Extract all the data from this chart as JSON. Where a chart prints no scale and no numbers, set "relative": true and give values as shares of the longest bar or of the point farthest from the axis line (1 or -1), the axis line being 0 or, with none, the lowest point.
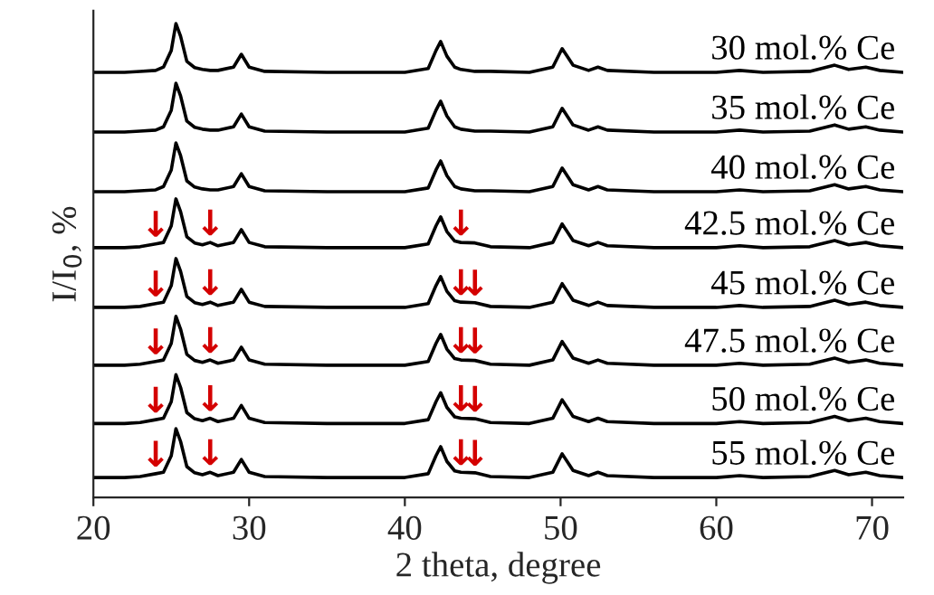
{
  "chart_data": {
    "type": "line",
    "relative": true,
    "xlabel": "2 theta, degree",
    "ylabel": "I/I$_{0}$, %",
    "xlim": [
      20,
      72
    ],
    "xticks": [
      20,
      30,
      40,
      50,
      60,
      70
    ],
    "grid": false,
    "legend": false,
    "marker": "none",
    "line_style": "solid",
    "x": [
      20,
      22,
      23,
      24,
      24.5,
      25,
      25.3,
      25.6,
      26,
      26.5,
      27,
      27.5,
      28,
      29,
      29.5,
      30,
      31,
      35,
      40,
      41.5,
      42,
      42.3,
      42.7,
      43.2,
      43.6,
      44.5,
      45.5,
      48,
      49.5,
      50.1,
      50.8,
      51.8,
      52.4,
      53,
      56,
      60,
      61.5,
      63,
      66,
      67.6,
      68.5,
      69.6,
      70.5,
      72
    ],
    "series": [
      {
        "name": "30 mol.% Ce",
        "color": "#000000",
        "values": [
          0.897,
          0.897,
          0.899,
          0.901,
          0.908,
          0.943,
          1.0,
          0.973,
          0.92,
          0.907,
          0.903,
          0.901,
          0.901,
          0.908,
          0.935,
          0.908,
          0.899,
          0.897,
          0.897,
          0.905,
          0.943,
          0.962,
          0.931,
          0.908,
          0.903,
          0.899,
          0.899,
          0.897,
          0.908,
          0.947,
          0.912,
          0.901,
          0.908,
          0.901,
          0.897,
          0.897,
          0.901,
          0.897,
          0.899,
          0.912,
          0.903,
          0.908,
          0.901,
          0.897
        ]
      },
      {
        "name": "35 mol.% Ce",
        "color": "#000000",
        "values": [
          0.771,
          0.771,
          0.773,
          0.775,
          0.782,
          0.817,
          0.874,
          0.847,
          0.794,
          0.781,
          0.777,
          0.775,
          0.775,
          0.782,
          0.809,
          0.782,
          0.773,
          0.771,
          0.771,
          0.779,
          0.817,
          0.836,
          0.805,
          0.782,
          0.777,
          0.773,
          0.773,
          0.771,
          0.782,
          0.821,
          0.786,
          0.775,
          0.782,
          0.775,
          0.771,
          0.771,
          0.775,
          0.771,
          0.773,
          0.786,
          0.777,
          0.782,
          0.775,
          0.771
        ]
      },
      {
        "name": "40 mol.% Ce",
        "color": "#000000",
        "values": [
          0.645,
          0.645,
          0.647,
          0.649,
          0.656,
          0.691,
          0.748,
          0.721,
          0.668,
          0.655,
          0.651,
          0.649,
          0.649,
          0.656,
          0.683,
          0.656,
          0.647,
          0.645,
          0.645,
          0.653,
          0.691,
          0.71,
          0.679,
          0.656,
          0.651,
          0.647,
          0.647,
          0.645,
          0.656,
          0.695,
          0.66,
          0.649,
          0.656,
          0.649,
          0.645,
          0.645,
          0.649,
          0.645,
          0.647,
          0.66,
          0.651,
          0.656,
          0.649,
          0.645
        ]
      },
      {
        "name": "42.5 mol.% Ce",
        "color": "#000000",
        "values": [
          0.527,
          0.527,
          0.529,
          0.535,
          0.538,
          0.573,
          0.63,
          0.603,
          0.55,
          0.537,
          0.533,
          0.538,
          0.531,
          0.538,
          0.565,
          0.538,
          0.529,
          0.527,
          0.527,
          0.535,
          0.573,
          0.592,
          0.561,
          0.541,
          0.538,
          0.537,
          0.529,
          0.527,
          0.538,
          0.577,
          0.542,
          0.531,
          0.538,
          0.531,
          0.527,
          0.527,
          0.531,
          0.527,
          0.529,
          0.542,
          0.533,
          0.538,
          0.531,
          0.527
        ]
      },
      {
        "name": "45 mol.% Ce",
        "color": "#000000",
        "values": [
          0.401,
          0.401,
          0.403,
          0.409,
          0.412,
          0.447,
          0.504,
          0.477,
          0.424,
          0.411,
          0.407,
          0.412,
          0.405,
          0.412,
          0.439,
          0.412,
          0.403,
          0.401,
          0.401,
          0.409,
          0.447,
          0.466,
          0.435,
          0.415,
          0.412,
          0.411,
          0.403,
          0.401,
          0.412,
          0.451,
          0.416,
          0.405,
          0.412,
          0.405,
          0.401,
          0.401,
          0.405,
          0.401,
          0.403,
          0.416,
          0.407,
          0.412,
          0.405,
          0.401
        ]
      },
      {
        "name": "47.5 mol.% Ce",
        "color": "#000000",
        "values": [
          0.279,
          0.279,
          0.281,
          0.287,
          0.29,
          0.325,
          0.382,
          0.355,
          0.302,
          0.289,
          0.285,
          0.29,
          0.283,
          0.29,
          0.317,
          0.29,
          0.281,
          0.279,
          0.279,
          0.287,
          0.325,
          0.344,
          0.313,
          0.293,
          0.29,
          0.289,
          0.281,
          0.279,
          0.29,
          0.329,
          0.294,
          0.283,
          0.29,
          0.283,
          0.279,
          0.279,
          0.283,
          0.279,
          0.281,
          0.294,
          0.285,
          0.29,
          0.283,
          0.279
        ]
      },
      {
        "name": "50 mol.% Ce",
        "color": "#000000",
        "values": [
          0.156,
          0.156,
          0.158,
          0.164,
          0.167,
          0.202,
          0.259,
          0.232,
          0.179,
          0.166,
          0.162,
          0.167,
          0.16,
          0.167,
          0.194,
          0.167,
          0.158,
          0.156,
          0.156,
          0.164,
          0.202,
          0.221,
          0.19,
          0.17,
          0.167,
          0.166,
          0.158,
          0.156,
          0.167,
          0.206,
          0.171,
          0.16,
          0.167,
          0.16,
          0.156,
          0.156,
          0.16,
          0.156,
          0.158,
          0.171,
          0.162,
          0.167,
          0.16,
          0.156
        ]
      },
      {
        "name": "55 mol.% Ce",
        "color": "#000000",
        "values": [
          0.042,
          0.042,
          0.044,
          0.05,
          0.053,
          0.088,
          0.145,
          0.118,
          0.065,
          0.052,
          0.048,
          0.053,
          0.046,
          0.053,
          0.08,
          0.053,
          0.044,
          0.042,
          0.042,
          0.05,
          0.088,
          0.107,
          0.076,
          0.056,
          0.053,
          0.052,
          0.044,
          0.042,
          0.053,
          0.092,
          0.057,
          0.046,
          0.053,
          0.046,
          0.042,
          0.042,
          0.046,
          0.042,
          0.044,
          0.057,
          0.048,
          0.053,
          0.046,
          0.042
        ]
      }
    ],
    "annotations": [
      {
        "text": "↓",
        "x": 24,
        "y": 0.535
      },
      {
        "text": "↓",
        "x": 27.5,
        "y": 0.538
      },
      {
        "text": "↓",
        "x": 43.6,
        "y": 0.538
      },
      {
        "text": "↓",
        "x": 24,
        "y": 0.409
      },
      {
        "text": "↓",
        "x": 27.5,
        "y": 0.412
      },
      {
        "text": "↓",
        "x": 43.6,
        "y": 0.412
      },
      {
        "text": "↓",
        "x": 44.5,
        "y": 0.411
      },
      {
        "text": "↓",
        "x": 24,
        "y": 0.287
      },
      {
        "text": "↓",
        "x": 27.5,
        "y": 0.29
      },
      {
        "text": "↓",
        "x": 43.6,
        "y": 0.29
      },
      {
        "text": "↓",
        "x": 44.5,
        "y": 0.289
      },
      {
        "text": "↓",
        "x": 24,
        "y": 0.164
      },
      {
        "text": "↓",
        "x": 27.5,
        "y": 0.167
      },
      {
        "text": "↓",
        "x": 43.6,
        "y": 0.167
      },
      {
        "text": "↓",
        "x": 44.5,
        "y": 0.166
      },
      {
        "text": "↓",
        "x": 24,
        "y": 0.05
      },
      {
        "text": "↓",
        "x": 27.5,
        "y": 0.053
      },
      {
        "text": "↓",
        "x": 43.6,
        "y": 0.053
      },
      {
        "text": "↓",
        "x": 44.5,
        "y": 0.052
      }
    ]
  }
}
